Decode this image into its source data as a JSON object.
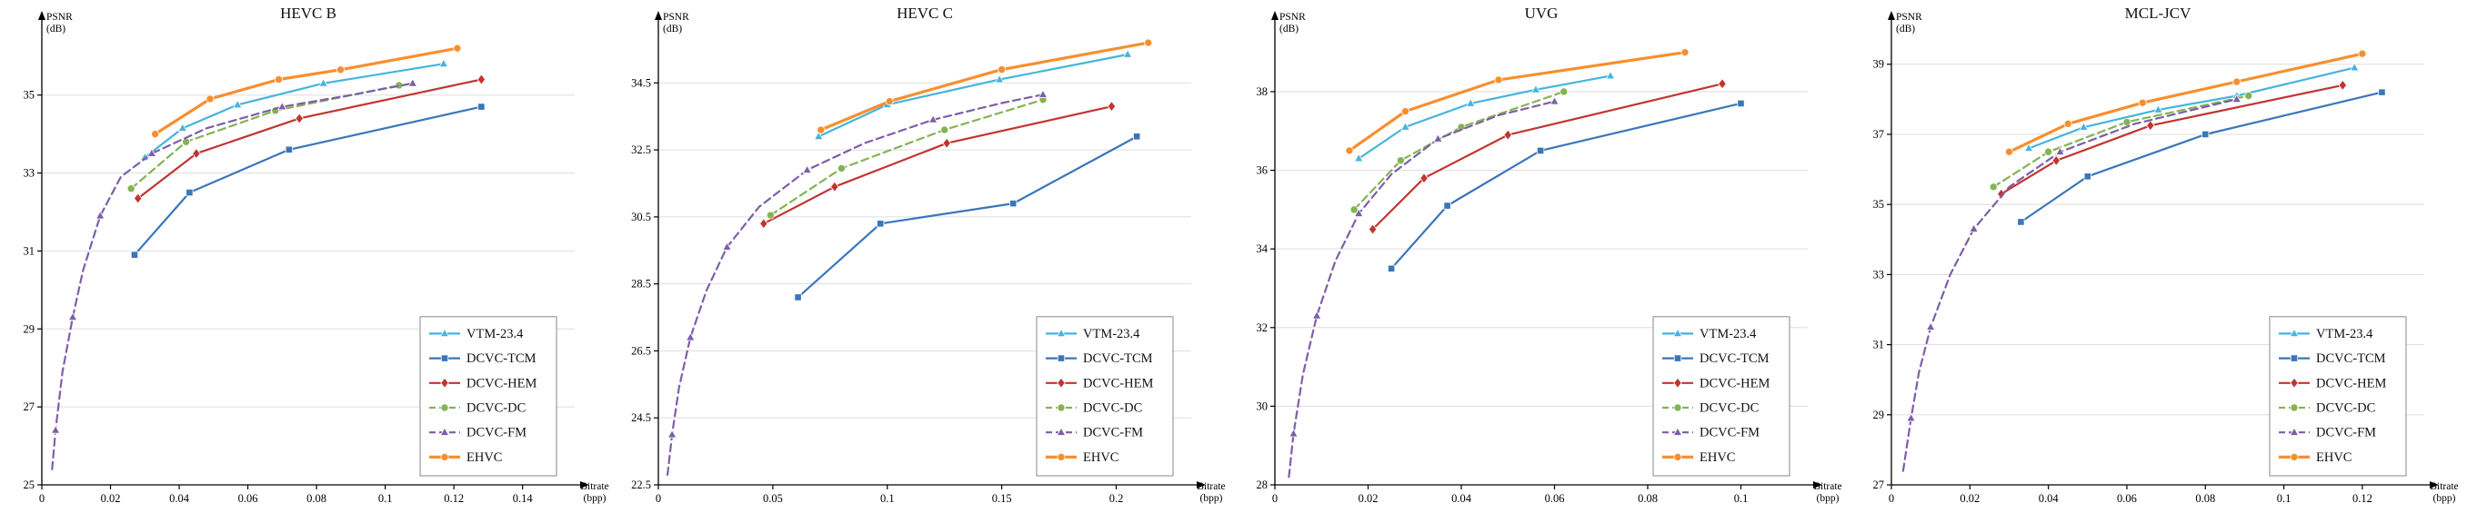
{
  "page": {
    "background": "#ffffff"
  },
  "chart_data": [
    {
      "type": "line",
      "title": "HEVC B",
      "xlabel_lines": [
        "Bitrate",
        "(bpp)"
      ],
      "ylabel_lines": [
        "PSNR",
        "(dB)"
      ],
      "xlim": [
        0,
        0.152
      ],
      "ylim": [
        25,
        36.6
      ],
      "xticks": [
        0,
        0.02,
        0.04,
        0.06,
        0.08,
        0.1,
        0.12,
        0.14
      ],
      "yticks": [
        25,
        27,
        29,
        31,
        33,
        35
      ],
      "grid": true,
      "legend_position": "lower right",
      "series": [
        {
          "name": "VTM-23.4",
          "color": "#45b4dc",
          "marker": "triangle",
          "dash": false,
          "width": 2.2,
          "x": [
            0.03,
            0.041,
            0.057,
            0.082,
            0.117
          ],
          "y": [
            33.4,
            34.15,
            34.75,
            35.3,
            35.8
          ]
        },
        {
          "name": "DCVC-TCM",
          "color": "#3a76b9",
          "marker": "square",
          "dash": false,
          "width": 2.2,
          "x": [
            0.027,
            0.043,
            0.072,
            0.128
          ],
          "y": [
            30.9,
            32.5,
            33.6,
            34.7
          ]
        },
        {
          "name": "DCVC-HEM",
          "color": "#c13530",
          "marker": "diamond",
          "dash": false,
          "width": 2.2,
          "x": [
            0.028,
            0.045,
            0.075,
            0.128
          ],
          "y": [
            32.35,
            33.5,
            34.4,
            35.4
          ]
        },
        {
          "name": "DCVC-DC",
          "color": "#84b354",
          "marker": "circle",
          "dash": true,
          "width": 2.2,
          "x": [
            0.026,
            0.042,
            0.068,
            0.104
          ],
          "y": [
            32.6,
            33.8,
            34.6,
            35.25
          ]
        },
        {
          "name": "DCVC-FM",
          "color": "#7d5fa8",
          "marker": "triangle",
          "dash": true,
          "width": 2.2,
          "marker_every": 2,
          "x": [
            0.003,
            0.004,
            0.006,
            0.009,
            0.012,
            0.017,
            0.023,
            0.032,
            0.048,
            0.07,
            0.09,
            0.108
          ],
          "y": [
            25.4,
            26.4,
            27.9,
            29.3,
            30.5,
            31.9,
            32.9,
            33.5,
            34.15,
            34.7,
            35.0,
            35.3
          ]
        },
        {
          "name": "EHVC",
          "color": "#f78f2e",
          "marker": "circle",
          "dash": false,
          "width": 3.2,
          "x": [
            0.033,
            0.049,
            0.069,
            0.087,
            0.121
          ],
          "y": [
            34.0,
            34.9,
            35.4,
            35.65,
            36.2
          ]
        }
      ]
    },
    {
      "type": "line",
      "title": "HEVC C",
      "xlabel_lines": [
        "Bitrate",
        "(bpp)"
      ],
      "ylabel_lines": [
        "PSNR",
        "(dB)"
      ],
      "xlim": [
        0,
        0.228
      ],
      "ylim": [
        22.5,
        36.0
      ],
      "xticks": [
        0,
        0.05,
        0.1,
        0.15,
        0.2
      ],
      "yticks": [
        22.5,
        24.5,
        26.5,
        28.5,
        30.5,
        32.5,
        34.5
      ],
      "grid": true,
      "legend_position": "lower right",
      "series": [
        {
          "name": "VTM-23.4",
          "color": "#45b4dc",
          "marker": "triangle",
          "dash": false,
          "width": 2.2,
          "x": [
            0.07,
            0.1,
            0.149,
            0.205
          ],
          "y": [
            32.9,
            33.85,
            34.6,
            35.35
          ]
        },
        {
          "name": "DCVC-TCM",
          "color": "#3a76b9",
          "marker": "square",
          "dash": false,
          "width": 2.2,
          "x": [
            0.061,
            0.097,
            0.155,
            0.209
          ],
          "y": [
            28.1,
            30.3,
            30.9,
            32.9
          ]
        },
        {
          "name": "DCVC-HEM",
          "color": "#c13530",
          "marker": "diamond",
          "dash": false,
          "width": 2.2,
          "x": [
            0.046,
            0.077,
            0.126,
            0.198
          ],
          "y": [
            30.3,
            31.4,
            32.7,
            33.8
          ]
        },
        {
          "name": "DCVC-DC",
          "color": "#84b354",
          "marker": "circle",
          "dash": true,
          "width": 2.2,
          "x": [
            0.049,
            0.08,
            0.125,
            0.168
          ],
          "y": [
            30.55,
            31.95,
            33.1,
            34.0
          ]
        },
        {
          "name": "DCVC-FM",
          "color": "#7d5fa8",
          "marker": "triangle",
          "dash": true,
          "width": 2.2,
          "marker_every": 2,
          "x": [
            0.004,
            0.006,
            0.009,
            0.014,
            0.021,
            0.03,
            0.044,
            0.065,
            0.09,
            0.12,
            0.15,
            0.168
          ],
          "y": [
            22.8,
            24.0,
            25.4,
            26.9,
            28.3,
            29.6,
            30.8,
            31.9,
            32.7,
            33.4,
            33.9,
            34.15
          ]
        },
        {
          "name": "EHVC",
          "color": "#f78f2e",
          "marker": "circle",
          "dash": false,
          "width": 3.2,
          "x": [
            0.071,
            0.101,
            0.15,
            0.214
          ],
          "y": [
            33.1,
            33.95,
            34.9,
            35.7
          ]
        }
      ]
    },
    {
      "type": "line",
      "title": "UVG",
      "xlabel_lines": [
        "Bitrate",
        "(bpp)"
      ],
      "ylabel_lines": [
        "PSNR",
        "(dB)"
      ],
      "xlim": [
        0,
        0.112
      ],
      "ylim": [
        28,
        39.5
      ],
      "xticks": [
        0,
        0.02,
        0.04,
        0.06,
        0.08,
        0.1
      ],
      "yticks": [
        28,
        30,
        32,
        34,
        36,
        38
      ],
      "grid": true,
      "legend_position": "lower right",
      "series": [
        {
          "name": "VTM-23.4",
          "color": "#45b4dc",
          "marker": "triangle",
          "dash": false,
          "width": 2.2,
          "x": [
            0.018,
            0.028,
            0.042,
            0.056,
            0.072
          ],
          "y": [
            36.3,
            37.1,
            37.7,
            38.05,
            38.4
          ]
        },
        {
          "name": "DCVC-TCM",
          "color": "#3a76b9",
          "marker": "square",
          "dash": false,
          "width": 2.2,
          "x": [
            0.025,
            0.037,
            0.057,
            0.1
          ],
          "y": [
            33.5,
            35.1,
            36.5,
            37.7
          ]
        },
        {
          "name": "DCVC-HEM",
          "color": "#c13530",
          "marker": "diamond",
          "dash": false,
          "width": 2.2,
          "x": [
            0.021,
            0.032,
            0.05,
            0.096
          ],
          "y": [
            34.5,
            35.8,
            36.9,
            38.2
          ]
        },
        {
          "name": "DCVC-DC",
          "color": "#84b354",
          "marker": "circle",
          "dash": true,
          "width": 2.2,
          "x": [
            0.017,
            0.027,
            0.04,
            0.062
          ],
          "y": [
            35.0,
            36.25,
            37.1,
            38.0
          ]
        },
        {
          "name": "DCVC-FM",
          "color": "#7d5fa8",
          "marker": "triangle",
          "dash": true,
          "width": 2.2,
          "marker_every": 2,
          "x": [
            0.003,
            0.004,
            0.006,
            0.009,
            0.013,
            0.018,
            0.025,
            0.035,
            0.048,
            0.06
          ],
          "y": [
            28.2,
            29.3,
            30.8,
            32.3,
            33.7,
            34.9,
            35.9,
            36.8,
            37.4,
            37.75
          ]
        },
        {
          "name": "EHVC",
          "color": "#f78f2e",
          "marker": "circle",
          "dash": false,
          "width": 3.2,
          "x": [
            0.016,
            0.028,
            0.048,
            0.088
          ],
          "y": [
            36.5,
            37.5,
            38.3,
            39.0
          ]
        }
      ]
    },
    {
      "type": "line",
      "title": "MCL-JCV",
      "xlabel_lines": [
        "Bitrate",
        "(bpp)"
      ],
      "ylabel_lines": [
        "PSNR",
        "(dB)"
      ],
      "xlim": [
        0,
        0.133
      ],
      "ylim": [
        27,
        39.9
      ],
      "xticks": [
        0,
        0.02,
        0.04,
        0.06,
        0.08,
        0.1,
        0.12
      ],
      "yticks": [
        27,
        29,
        31,
        33,
        35,
        37,
        39
      ],
      "grid": true,
      "legend_position": "lower right",
      "series": [
        {
          "name": "VTM-23.4",
          "color": "#45b4dc",
          "marker": "triangle",
          "dash": false,
          "width": 2.2,
          "x": [
            0.035,
            0.049,
            0.068,
            0.088,
            0.118
          ],
          "y": [
            36.6,
            37.2,
            37.7,
            38.1,
            38.9
          ]
        },
        {
          "name": "DCVC-TCM",
          "color": "#3a76b9",
          "marker": "square",
          "dash": false,
          "width": 2.2,
          "x": [
            0.033,
            0.05,
            0.08,
            0.125
          ],
          "y": [
            34.5,
            35.8,
            37.0,
            38.2
          ]
        },
        {
          "name": "DCVC-HEM",
          "color": "#c13530",
          "marker": "diamond",
          "dash": false,
          "width": 2.2,
          "x": [
            0.028,
            0.042,
            0.066,
            0.115
          ],
          "y": [
            35.3,
            36.25,
            37.25,
            38.4
          ]
        },
        {
          "name": "DCVC-DC",
          "color": "#84b354",
          "marker": "circle",
          "dash": true,
          "width": 2.2,
          "x": [
            0.026,
            0.04,
            0.06,
            0.091
          ],
          "y": [
            35.5,
            36.5,
            37.35,
            38.1
          ]
        },
        {
          "name": "DCVC-FM",
          "color": "#7d5fa8",
          "marker": "triangle",
          "dash": true,
          "width": 2.2,
          "marker_every": 2,
          "x": [
            0.003,
            0.005,
            0.007,
            0.01,
            0.015,
            0.021,
            0.03,
            0.043,
            0.062,
            0.088
          ],
          "y": [
            27.4,
            28.9,
            30.2,
            31.5,
            33.0,
            34.3,
            35.5,
            36.5,
            37.3,
            38.0
          ]
        },
        {
          "name": "EHVC",
          "color": "#f78f2e",
          "marker": "circle",
          "dash": false,
          "width": 3.2,
          "x": [
            0.03,
            0.045,
            0.064,
            0.088,
            0.12
          ],
          "y": [
            36.5,
            37.3,
            37.9,
            38.5,
            39.3
          ]
        }
      ]
    }
  ]
}
